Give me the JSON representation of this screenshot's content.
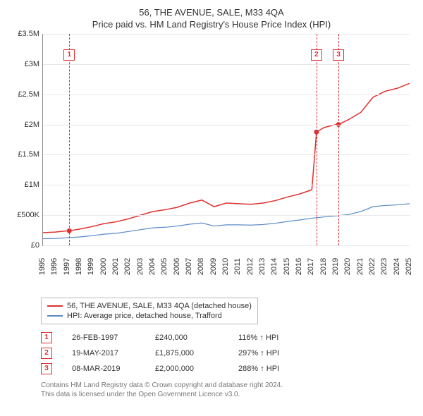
{
  "title": "56, THE AVENUE, SALE, M33 4QA",
  "subtitle": "Price paid vs. HM Land Registry's House Price Index (HPI)",
  "chart": {
    "type": "line",
    "background_color": "#ffffff",
    "grid_color": "#e8e8e8",
    "axis_color": "#888888",
    "xlim": [
      1995,
      2025
    ],
    "ylim": [
      0,
      3500000
    ],
    "yticks": [
      0,
      500000,
      1000000,
      1500000,
      2000000,
      2500000,
      3000000,
      3500000
    ],
    "ytick_labels": [
      "£0",
      "£500K",
      "£1M",
      "£1.5M",
      "£2M",
      "£2.5M",
      "£3M",
      "£3.5M"
    ],
    "xticks": [
      1995,
      1996,
      1997,
      1998,
      1999,
      2000,
      2001,
      2002,
      2003,
      2004,
      2005,
      2006,
      2007,
      2008,
      2009,
      2010,
      2011,
      2012,
      2013,
      2014,
      2015,
      2016,
      2017,
      2018,
      2019,
      2020,
      2021,
      2022,
      2023,
      2024,
      2025
    ],
    "label_fontsize": 11,
    "title_fontsize": 13,
    "series": [
      {
        "id": "property",
        "label": "56, THE AVENUE, SALE, M33 4QA (detached house)",
        "color": "#e03030",
        "width": 1.5,
        "x": [
          1995,
          1996,
          1997,
          1997.15,
          1998,
          1999,
          2000,
          2001,
          2002,
          2003,
          2004,
          2005,
          2006,
          2007,
          2008,
          2009,
          2010,
          2011,
          2012,
          2013,
          2014,
          2015,
          2016,
          2017,
          2017.38,
          2018,
          2019,
          2019.18,
          2020,
          2021,
          2022,
          2023,
          2024,
          2025
        ],
        "y": [
          210000,
          220000,
          240000,
          240000,
          270000,
          310000,
          360000,
          390000,
          440000,
          500000,
          560000,
          590000,
          630000,
          700000,
          750000,
          640000,
          700000,
          690000,
          680000,
          700000,
          740000,
          800000,
          850000,
          920000,
          1875000,
          1950000,
          2000000,
          2000000,
          2080000,
          2200000,
          2450000,
          2550000,
          2600000,
          2680000
        ]
      },
      {
        "id": "hpi",
        "label": "HPI: Average price, detached house, Trafford",
        "color": "#5b8ac7",
        "width": 1.2,
        "x": [
          1995,
          1996,
          1997,
          1998,
          1999,
          2000,
          2001,
          2002,
          2003,
          2004,
          2005,
          2006,
          2007,
          2008,
          2009,
          2010,
          2011,
          2012,
          2013,
          2014,
          2015,
          2016,
          2017,
          2018,
          2019,
          2020,
          2021,
          2022,
          2023,
          2024,
          2025
        ],
        "y": [
          110000,
          115000,
          125000,
          140000,
          160000,
          185000,
          200000,
          230000,
          260000,
          290000,
          300000,
          320000,
          350000,
          370000,
          320000,
          340000,
          340000,
          335000,
          345000,
          365000,
          395000,
          420000,
          450000,
          470000,
          490000,
          510000,
          560000,
          640000,
          660000,
          670000,
          690000
        ]
      }
    ],
    "sale_points": [
      {
        "x": 1997.15,
        "y": 240000
      },
      {
        "x": 2017.38,
        "y": 1875000
      },
      {
        "x": 2019.18,
        "y": 2000000
      }
    ],
    "events": [
      {
        "n": "1",
        "x": 1997.15,
        "marker_y_offset": 22
      },
      {
        "n": "2",
        "x": 2017.38,
        "marker_y_offset": 22
      },
      {
        "n": "3",
        "x": 2019.18,
        "marker_y_offset": 22
      }
    ],
    "event_line_color": "#e03030"
  },
  "legend": {
    "border_color": "#bbbbbb",
    "items": [
      {
        "color": "#e03030",
        "label": "56, THE AVENUE, SALE, M33 4QA (detached house)"
      },
      {
        "color": "#5b8ac7",
        "label": "HPI: Average price, detached house, Trafford"
      }
    ]
  },
  "events_table": [
    {
      "n": "1",
      "date": "26-FEB-1997",
      "price": "£240,000",
      "hpi": "116% ↑ HPI"
    },
    {
      "n": "2",
      "date": "19-MAY-2017",
      "price": "£1,875,000",
      "hpi": "297% ↑ HPI"
    },
    {
      "n": "3",
      "date": "08-MAR-2019",
      "price": "£2,000,000",
      "hpi": "288% ↑ HPI"
    }
  ],
  "footer": {
    "line1": "Contains HM Land Registry data © Crown copyright and database right 2024.",
    "line2": "This data is licensed under the Open Government Licence v3.0."
  }
}
